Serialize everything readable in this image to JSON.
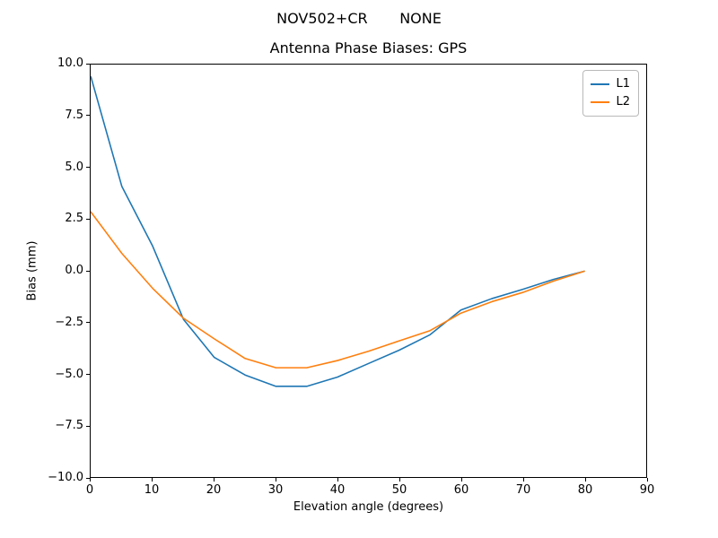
{
  "figure": {
    "suptitle": "NOV502+CR       NONE",
    "title": "Antenna Phase Biases: GPS",
    "xlabel": "Elevation angle (degrees)",
    "ylabel": "Bias (mm)"
  },
  "legend": {
    "entries": [
      {
        "label": "L1",
        "color": "#1f77b4"
      },
      {
        "label": "L2",
        "color": "#ff7f0e"
      }
    ]
  },
  "chart_data": {
    "type": "line",
    "title": "Antenna Phase Biases: GPS",
    "suptitle": "NOV502+CR       NONE",
    "xlabel": "Elevation angle (degrees)",
    "ylabel": "Bias (mm)",
    "xlim": [
      0,
      90
    ],
    "ylim": [
      -10,
      10
    ],
    "grid": false,
    "legend_position": "upper right",
    "x_ticks": [
      0,
      10,
      20,
      30,
      40,
      50,
      60,
      70,
      80,
      90
    ],
    "x_tick_labels": [
      "0",
      "10",
      "20",
      "30",
      "40",
      "50",
      "60",
      "70",
      "80",
      "90"
    ],
    "y_ticks": [
      10,
      7.5,
      5,
      2.5,
      0,
      -2.5,
      -5,
      -7.5,
      -10
    ],
    "y_tick_labels": [
      "10.0",
      "7.5",
      "5.0",
      "2.5",
      "0.0",
      "−2.5",
      "−5.0",
      "−7.5",
      "−10.0"
    ],
    "x": [
      0,
      5,
      10,
      15,
      20,
      25,
      30,
      35,
      40,
      45,
      50,
      55,
      60,
      65,
      70,
      75,
      80
    ],
    "series": [
      {
        "name": "L1",
        "color": "#1f77b4",
        "values": [
          9.4,
          4.1,
          1.2,
          -2.35,
          -4.2,
          -5.05,
          -5.6,
          -5.6,
          -5.15,
          -4.5,
          -3.85,
          -3.1,
          -1.9,
          -1.35,
          -0.9,
          -0.42,
          -0.02
        ]
      },
      {
        "name": "L2",
        "color": "#ff7f0e",
        "values": [
          2.85,
          0.85,
          -0.85,
          -2.3,
          -3.3,
          -4.25,
          -4.7,
          -4.7,
          -4.35,
          -3.9,
          -3.4,
          -2.9,
          -2.05,
          -1.5,
          -1.05,
          -0.5,
          -0.02
        ]
      }
    ]
  }
}
